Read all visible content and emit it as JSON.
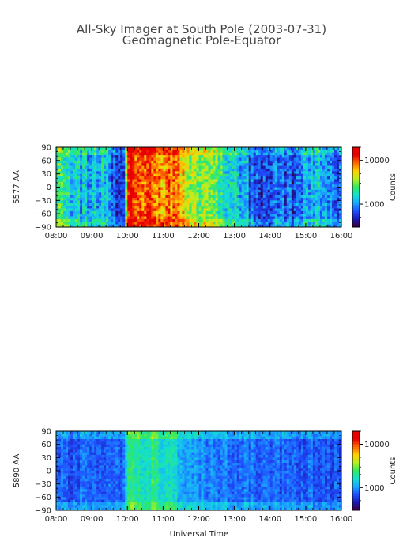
{
  "figure": {
    "title_line1": "All-Sky Imager at South Pole (2003-07-31)",
    "title_line2": "Geomagnetic Pole-Equator",
    "xlabel": "Universal Time"
  },
  "colors": {
    "palette": [
      "#3a003a",
      "#1a1ab0",
      "#1f4fff",
      "#1aa8ff",
      "#13e0d0",
      "#33e860",
      "#b8f020",
      "#ffd200",
      "#ff6a00",
      "#e80000"
    ]
  },
  "chart_data": [
    {
      "type": "heatmap",
      "panel": "5577",
      "ylabel": "5577 AA",
      "x_ticks": [
        "08:00",
        "09:00",
        "10:00",
        "11:00",
        "12:00",
        "13:00",
        "14:00",
        "15:00",
        "16:00"
      ],
      "xlim": [
        "08:00",
        "16:00"
      ],
      "y_ticks": [
        90,
        60,
        30,
        0,
        -30,
        -60,
        -90
      ],
      "ylim": [
        -90,
        90
      ],
      "colorbar": {
        "label": "Counts",
        "ticks": [
          "10000",
          "1000"
        ],
        "scale": "log"
      },
      "time_profile": [
        [
          "08:00",
          4.5
        ],
        [
          "08:20",
          4.0
        ],
        [
          "08:40",
          3.5
        ],
        [
          "09:00",
          3.0
        ],
        [
          "09:20",
          3.6
        ],
        [
          "09:40",
          2.2
        ],
        [
          "09:55",
          1.0
        ],
        [
          "10:00",
          9.6
        ],
        [
          "10:10",
          9.0
        ],
        [
          "10:25",
          8.0
        ],
        [
          "10:40",
          8.4
        ],
        [
          "10:55",
          7.6
        ],
        [
          "11:10",
          8.0
        ],
        [
          "11:25",
          7.2
        ],
        [
          "11:40",
          6.4
        ],
        [
          "12:00",
          5.4
        ],
        [
          "12:20",
          5.0
        ],
        [
          "12:40",
          4.4
        ],
        [
          "13:00",
          3.4
        ],
        [
          "13:20",
          2.8
        ],
        [
          "13:40",
          1.4
        ],
        [
          "14:00",
          1.8
        ],
        [
          "14:20",
          2.8
        ],
        [
          "14:40",
          1.4
        ],
        [
          "15:00",
          3.2
        ],
        [
          "15:20",
          3.6
        ],
        [
          "15:40",
          2.0
        ],
        [
          "16:00",
          1.8
        ]
      ]
    },
    {
      "type": "heatmap",
      "panel": "5890",
      "ylabel": "5890 AA",
      "x_ticks": [
        "08:00",
        "09:00",
        "10:00",
        "11:00",
        "12:00",
        "13:00",
        "14:00",
        "15:00",
        "16:00"
      ],
      "xlim": [
        "08:00",
        "16:00"
      ],
      "y_ticks": [
        90,
        60,
        30,
        0,
        -30,
        -60,
        -90
      ],
      "ylim": [
        -90,
        90
      ],
      "colorbar": {
        "label": "Counts",
        "ticks": [
          "10000",
          "1000"
        ],
        "scale": "log"
      },
      "time_profile": [
        [
          "08:00",
          2.0
        ],
        [
          "08:30",
          2.1
        ],
        [
          "09:00",
          2.2
        ],
        [
          "09:30",
          2.0
        ],
        [
          "09:55",
          2.4
        ],
        [
          "10:00",
          5.0
        ],
        [
          "10:15",
          4.6
        ],
        [
          "10:30",
          4.2
        ],
        [
          "10:45",
          4.6
        ],
        [
          "11:00",
          3.8
        ],
        [
          "11:15",
          4.2
        ],
        [
          "11:30",
          3.2
        ],
        [
          "12:00",
          2.8
        ],
        [
          "12:30",
          2.6
        ],
        [
          "13:00",
          2.4
        ],
        [
          "13:30",
          2.2
        ],
        [
          "14:00",
          2.1
        ],
        [
          "14:30",
          2.1
        ],
        [
          "15:00",
          2.2
        ],
        [
          "15:30",
          2.0
        ],
        [
          "16:00",
          2.0
        ]
      ]
    }
  ]
}
